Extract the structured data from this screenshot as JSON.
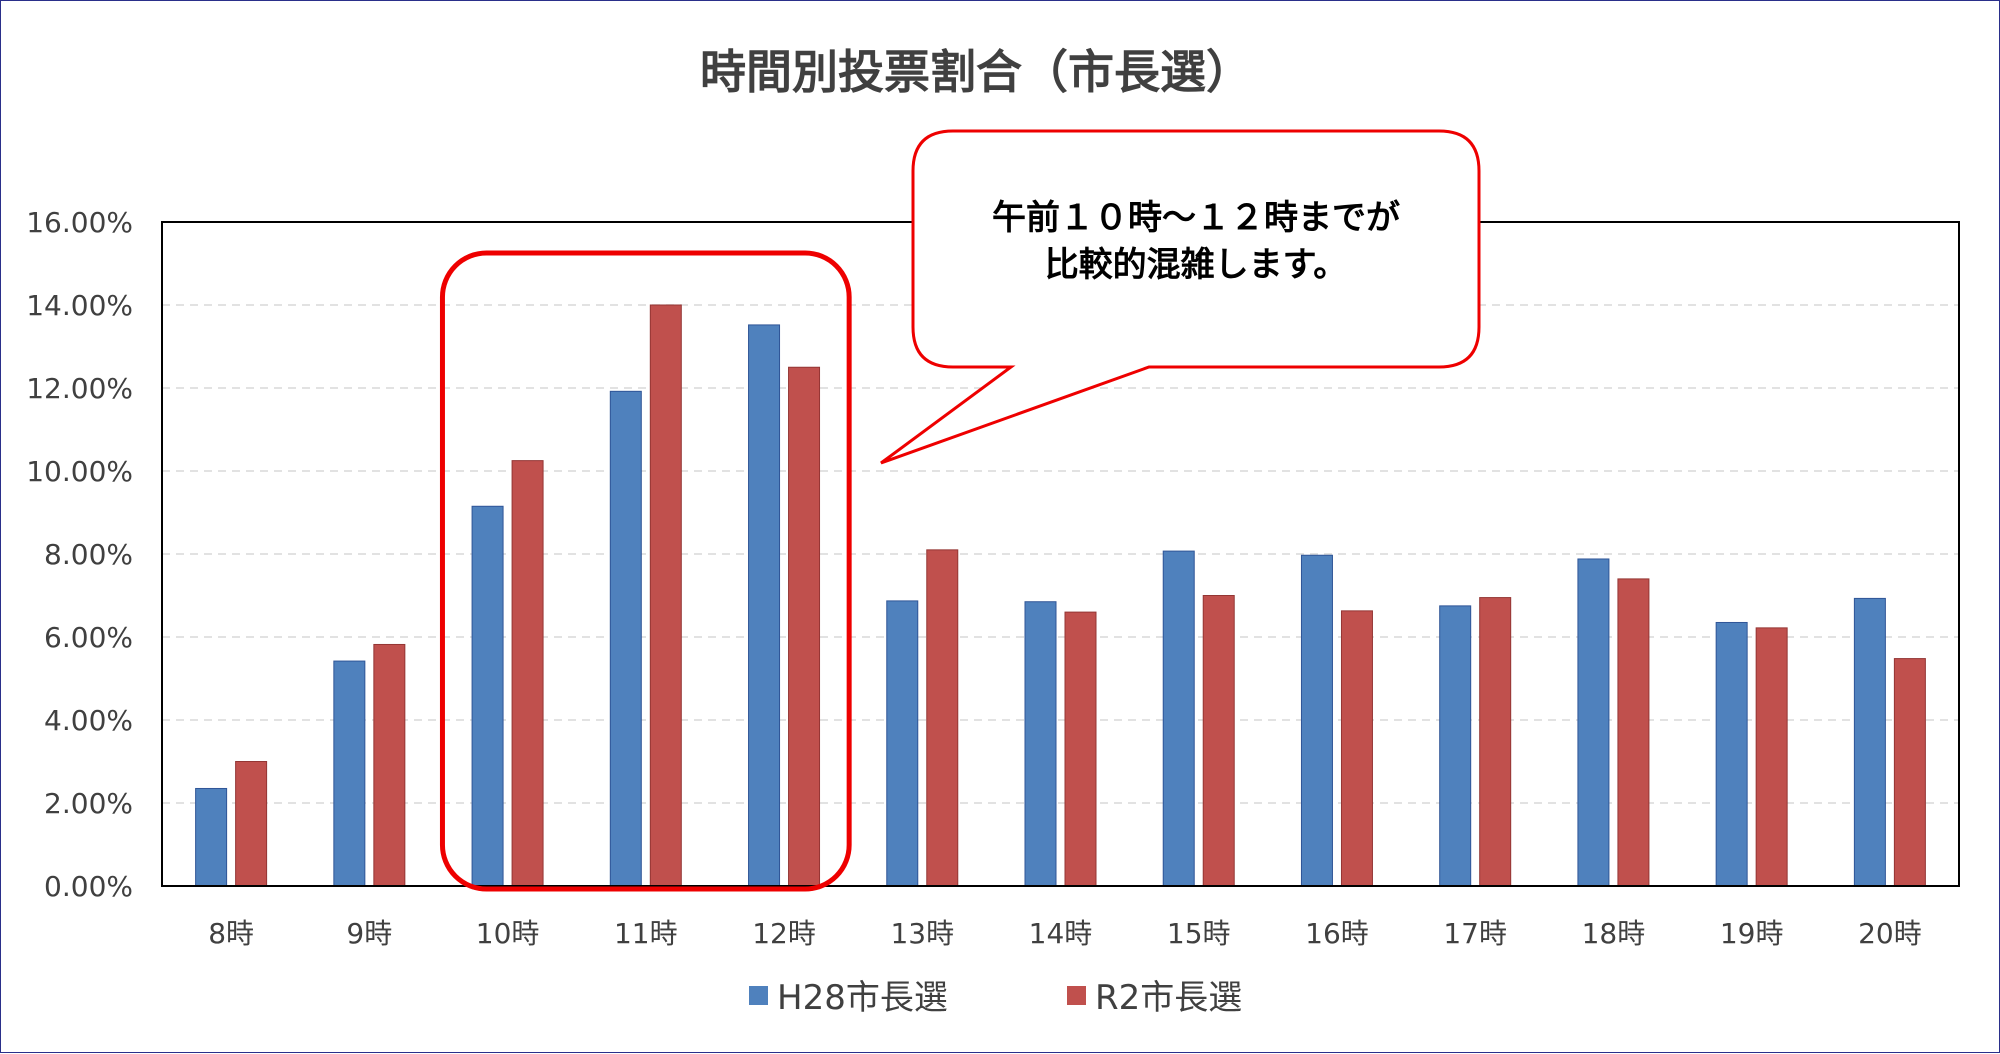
{
  "chart_data": {
    "type": "bar",
    "title": "時間別投票割合（市長選）",
    "categories": [
      "8時",
      "9時",
      "10時",
      "11時",
      "12時",
      "13時",
      "14時",
      "15時",
      "16時",
      "17時",
      "18時",
      "19時",
      "20時"
    ],
    "series": [
      {
        "name": "H28市長選",
        "color": "#4f81bd",
        "values": [
          2.35,
          5.42,
          9.15,
          11.92,
          13.52,
          6.87,
          6.85,
          8.07,
          7.97,
          6.75,
          7.88,
          6.35,
          6.93
        ]
      },
      {
        "name": "R2市長選",
        "color": "#c0504d",
        "values": [
          3.0,
          5.82,
          10.25,
          14.0,
          12.5,
          8.1,
          6.6,
          7.0,
          6.63,
          6.95,
          7.4,
          6.22,
          5.48
        ]
      }
    ],
    "ylim": [
      0,
      16
    ],
    "yticks": [
      "0.00%",
      "2.00%",
      "4.00%",
      "6.00%",
      "8.00%",
      "10.00%",
      "12.00%",
      "14.00%",
      "16.00%"
    ],
    "grid": true,
    "legend": "bottom",
    "xlabel": "",
    "ylabel": ""
  },
  "highlight": {
    "categories": [
      "10時",
      "11時",
      "12時"
    ],
    "color": "#ee0000"
  },
  "callout": {
    "lines": [
      "午前１０時～１２時までが",
      "比較的混雑します。"
    ],
    "border_color": "#ee0000"
  }
}
